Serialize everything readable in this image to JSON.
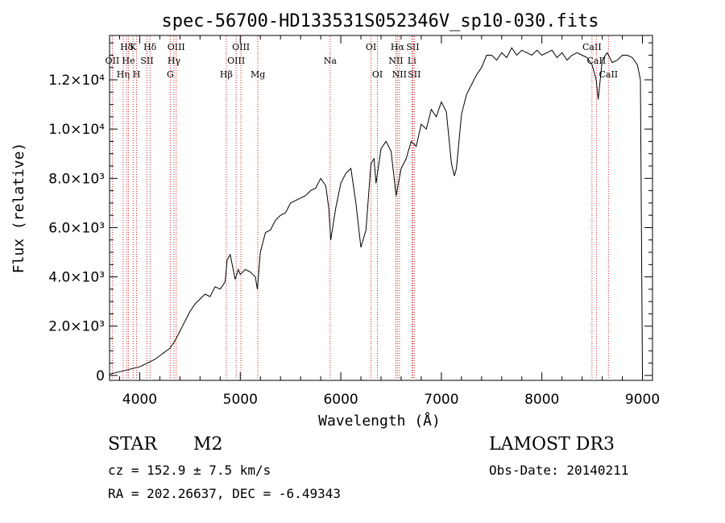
{
  "chart_data": {
    "type": "line",
    "title": "spec-56700-HD133531S052346V_sp10-030.fits",
    "xlabel": "Wavelength (Å)",
    "ylabel": "Flux (relative)",
    "xlim": [
      3700,
      9100
    ],
    "ylim": [
      -200,
      13800
    ],
    "x_ticks": [
      {
        "value": 4000,
        "label": "4000"
      },
      {
        "value": 5000,
        "label": "5000"
      },
      {
        "value": 6000,
        "label": "6000"
      },
      {
        "value": 7000,
        "label": "7000"
      },
      {
        "value": 8000,
        "label": "8000"
      },
      {
        "value": 9000,
        "label": "9000"
      }
    ],
    "y_ticks": [
      {
        "value": 0,
        "label": "0"
      },
      {
        "value": 2000,
        "label": "2.0×10³"
      },
      {
        "value": 4000,
        "label": "4.0×10³"
      },
      {
        "value": 6000,
        "label": "6.0×10³"
      },
      {
        "value": 8000,
        "label": "8.0×10³"
      },
      {
        "value": 10000,
        "label": "1.0×10⁴"
      },
      {
        "value": 12000,
        "label": "1.2×10⁴"
      }
    ],
    "series": [
      {
        "name": "spectrum",
        "color": "#000000",
        "x": [
          3700,
          3750,
          3800,
          3850,
          3900,
          3950,
          4000,
          4050,
          4100,
          4150,
          4200,
          4250,
          4300,
          4350,
          4400,
          4450,
          4500,
          4550,
          4600,
          4650,
          4700,
          4750,
          4800,
          4850,
          4870,
          4900,
          4950,
          4980,
          5000,
          5050,
          5100,
          5150,
          5170,
          5200,
          5250,
          5300,
          5350,
          5400,
          5450,
          5500,
          5550,
          5600,
          5650,
          5700,
          5750,
          5800,
          5850,
          5880,
          5900,
          5950,
          6000,
          6050,
          6100,
          6150,
          6200,
          6250,
          6300,
          6330,
          6350,
          6400,
          6450,
          6500,
          6550,
          6600,
          6650,
          6700,
          6750,
          6800,
          6850,
          6900,
          6950,
          7000,
          7050,
          7100,
          7130,
          7150,
          7200,
          7250,
          7300,
          7350,
          7400,
          7450,
          7500,
          7550,
          7600,
          7650,
          7700,
          7750,
          7800,
          7850,
          7900,
          7950,
          8000,
          8050,
          8100,
          8150,
          8200,
          8250,
          8300,
          8350,
          8400,
          8450,
          8500,
          8540,
          8560,
          8600,
          8650,
          8700,
          8750,
          8800,
          8850,
          8900,
          8950,
          8980,
          9000
        ],
        "y": [
          50,
          100,
          150,
          200,
          250,
          300,
          350,
          450,
          550,
          650,
          800,
          950,
          1100,
          1400,
          1800,
          2200,
          2600,
          2900,
          3100,
          3300,
          3200,
          3600,
          3500,
          3800,
          4700,
          4900,
          3900,
          4300,
          4100,
          4300,
          4200,
          4000,
          3500,
          5000,
          5800,
          5900,
          6300,
          6500,
          6600,
          7000,
          7100,
          7200,
          7300,
          7500,
          7600,
          8000,
          7700,
          6800,
          5500,
          6800,
          7800,
          8200,
          8400,
          7000,
          5200,
          5900,
          8600,
          8800,
          7800,
          9200,
          9500,
          9100,
          7300,
          8400,
          8800,
          9500,
          9300,
          10200,
          10000,
          10800,
          10500,
          11100,
          10700,
          8600,
          8100,
          8400,
          10600,
          11400,
          11800,
          12200,
          12500,
          13000,
          13000,
          12800,
          13100,
          12900,
          13300,
          13000,
          13200,
          13100,
          13000,
          13200,
          13000,
          13100,
          13200,
          12900,
          13100,
          12800,
          13000,
          13100,
          13000,
          12900,
          12600,
          12000,
          11200,
          12800,
          13100,
          12700,
          12800,
          13000,
          13000,
          12900,
          12600,
          12000,
          100
        ]
      }
    ],
    "spectral_lines": [
      {
        "wavelength": 3727,
        "label": "OII",
        "row": 2
      },
      {
        "wavelength": 3835,
        "label": "Hη",
        "row": 3
      },
      {
        "wavelength": 3870,
        "label": "Hδ",
        "row": 1
      },
      {
        "wavelength": 3889,
        "label": "He",
        "row": 2
      },
      {
        "wavelength": 3934,
        "label": "K",
        "row": 1
      },
      {
        "wavelength": 3969,
        "label": "H",
        "row": 3
      },
      {
        "wavelength": 4072,
        "label": "SII",
        "row": 2
      },
      {
        "wavelength": 4102,
        "label": "Hδ",
        "row": 1
      },
      {
        "wavelength": 4304,
        "label": "G",
        "row": 3
      },
      {
        "wavelength": 4341,
        "label": "Hγ",
        "row": 2
      },
      {
        "wavelength": 4363,
        "label": "OIII",
        "row": 1
      },
      {
        "wavelength": 4861,
        "label": "Hβ",
        "row": 3
      },
      {
        "wavelength": 4959,
        "label": "OIII",
        "row": 2
      },
      {
        "wavelength": 5007,
        "label": "OIII",
        "row": 1
      },
      {
        "wavelength": 5175,
        "label": "Mg",
        "row": 3
      },
      {
        "wavelength": 5894,
        "label": "Na",
        "row": 2
      },
      {
        "wavelength": 6300,
        "label": "OI",
        "row": 1
      },
      {
        "wavelength": 6364,
        "label": "OI",
        "row": 3
      },
      {
        "wavelength": 6548,
        "label": "NII",
        "row": 2
      },
      {
        "wavelength": 6563,
        "label": "Hα",
        "row": 1
      },
      {
        "wavelength": 6583,
        "label": "NII",
        "row": 3
      },
      {
        "wavelength": 6707,
        "label": "Li",
        "row": 2
      },
      {
        "wavelength": 6716,
        "label": "SII",
        "row": 1
      },
      {
        "wavelength": 6731,
        "label": "SII",
        "row": 3
      },
      {
        "wavelength": 8498,
        "label": "CaII",
        "row": 1
      },
      {
        "wavelength": 8542,
        "label": "CaII",
        "row": 2
      },
      {
        "wavelength": 8662,
        "label": "CaII",
        "row": 3
      }
    ],
    "spectral_line_color": "#cc2222",
    "legend": "none",
    "grid": false
  },
  "info": {
    "object_class": "STAR",
    "subclass": "M2",
    "survey": "LAMOST DR3",
    "redshift": "cz = 152.9 ± 7.5 km/s",
    "obs_date": "Obs-Date: 20140211",
    "coords": "RA = 202.26637, DEC =  -6.49343"
  }
}
